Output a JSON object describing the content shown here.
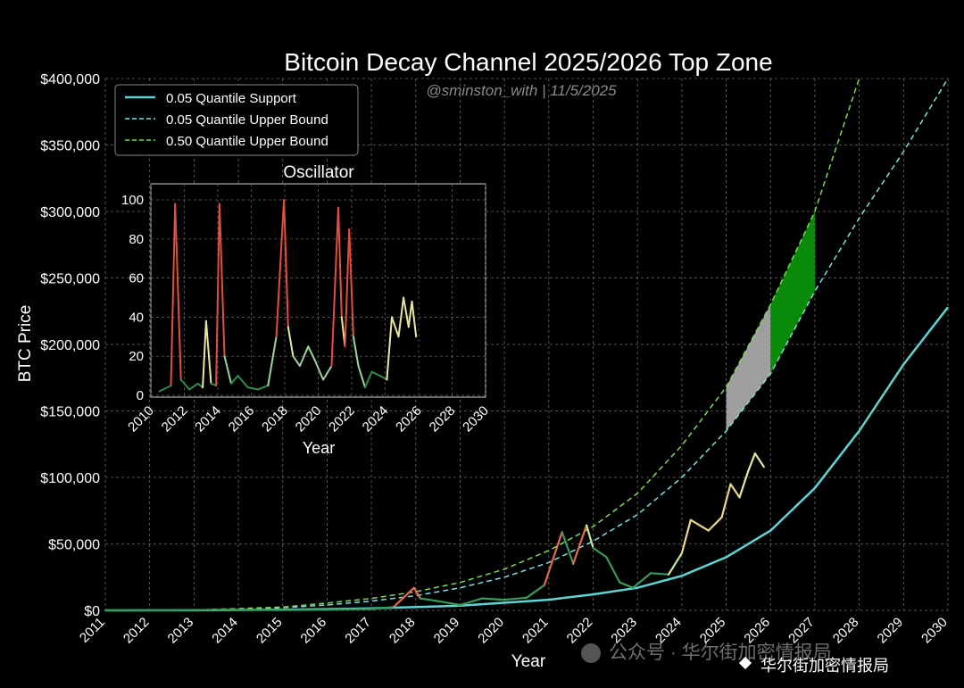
{
  "chart_data": {
    "main": {
      "type": "line",
      "title": "Bitcoin Decay Channel 2025/2026 Top Zone",
      "subtitle": "@sminston_with  |  11/5/2025",
      "xlabel": "Year",
      "ylabel": "BTC Price",
      "xlim": [
        2011,
        2030
      ],
      "ylim": [
        0,
        400000
      ],
      "x_ticks": [
        "2011",
        "2012",
        "2013",
        "2014",
        "2015",
        "2016",
        "2017",
        "2018",
        "2019",
        "2020",
        "2021",
        "2022",
        "2023",
        "2024",
        "2025",
        "2026",
        "2027",
        "2028",
        "2029",
        "2030"
      ],
      "y_ticks": [
        "$0",
        "$50,000",
        "$100,000",
        "$150,000",
        "$200,000",
        "$250,000",
        "$300,000",
        "$350,000",
        "$400,000"
      ],
      "grid": true,
      "legend_position": "top-left",
      "series": [
        {
          "name": "0.05 Quantile Support",
          "style": "solid",
          "color": "#5fd4d4",
          "x": [
            2011,
            2013,
            2015,
            2017,
            2019,
            2021,
            2022,
            2023,
            2024,
            2025,
            2026,
            2027,
            2028,
            2029,
            2030
          ],
          "y": [
            0,
            100,
            500,
            1500,
            3500,
            8000,
            12000,
            17000,
            26000,
            40000,
            60000,
            92000,
            135000,
            185000,
            228000
          ]
        },
        {
          "name": "0.05 Quantile Upper Bound",
          "style": "dashed",
          "color": "#7fe0e0",
          "x": [
            2013,
            2015,
            2016,
            2017,
            2018,
            2019,
            2020,
            2021,
            2022,
            2023,
            2024,
            2025,
            2026,
            2027,
            2028,
            2029,
            2030
          ],
          "y": [
            300,
            2000,
            4000,
            7000,
            11000,
            17000,
            25000,
            36000,
            52000,
            72000,
            100000,
            135000,
            178000,
            240000,
            295000,
            345000,
            400000
          ]
        },
        {
          "name": "0.50 Quantile Upper Bound",
          "style": "dashed",
          "color": "#7ed957",
          "x": [
            2013,
            2015,
            2016,
            2017,
            2018,
            2019,
            2020,
            2021,
            2022,
            2023,
            2024,
            2025,
            2026,
            2027,
            2028
          ],
          "y": [
            300,
            2500,
            5500,
            9000,
            14000,
            21000,
            31000,
            45000,
            63000,
            88000,
            124000,
            168000,
            230000,
            300000,
            400000
          ]
        },
        {
          "name": "BTC",
          "style": "price",
          "x": [
            2011,
            2012,
            2013,
            2014,
            2015,
            2016,
            2017,
            2017.5,
            2017.96,
            2018.1,
            2018.5,
            2019,
            2019.5,
            2020,
            2020.5,
            2020.9,
            2021.3,
            2021.55,
            2021.85,
            2022.0,
            2022.3,
            2022.6,
            2022.9,
            2023.3,
            2023.7,
            2024.0,
            2024.2,
            2024.6,
            2024.9,
            2025.1,
            2025.3,
            2025.5,
            2025.65,
            2025.85
          ],
          "y": [
            0,
            10,
            200,
            500,
            300,
            500,
            1000,
            2500,
            17000,
            9000,
            7000,
            4000,
            9000,
            8000,
            9500,
            19000,
            59000,
            35000,
            64000,
            47000,
            40000,
            21000,
            17000,
            28000,
            27000,
            43000,
            68000,
            60000,
            70000,
            95000,
            85000,
            105000,
            118000,
            108000
          ]
        }
      ],
      "zones": [
        {
          "name": "2025 zone",
          "color": "#b0b0b0",
          "x": [
            2025,
            2026
          ]
        },
        {
          "name": "2026 zone",
          "color": "#0a9a0a",
          "x": [
            2026,
            2027
          ]
        }
      ]
    },
    "inset": {
      "type": "line",
      "title": "Oscillator",
      "xlabel": "Year",
      "xlim": [
        2010,
        2030
      ],
      "ylim": [
        0,
        100
      ],
      "x_ticks": [
        "2010",
        "2012",
        "2014",
        "2016",
        "2018",
        "2020",
        "2022",
        "2024",
        "2026",
        "2028",
        "2030"
      ],
      "y_ticks": [
        "0",
        "20",
        "40",
        "60",
        "80",
        "100"
      ],
      "grid": true,
      "series": [
        {
          "name": "Oscillator",
          "x": [
            2010.5,
            2011.2,
            2011.45,
            2011.8,
            2012.3,
            2012.8,
            2013.1,
            2013.3,
            2013.6,
            2013.9,
            2014.1,
            2014.4,
            2014.8,
            2015.2,
            2015.8,
            2016.4,
            2017.0,
            2017.5,
            2017.95,
            2018.2,
            2018.5,
            2018.9,
            2019.4,
            2019.8,
            2020.3,
            2020.8,
            2021.2,
            2021.4,
            2021.6,
            2021.85,
            2022.1,
            2022.4,
            2022.8,
            2023.2,
            2023.7,
            2024.1,
            2024.4,
            2024.8,
            2025.1,
            2025.4,
            2025.6,
            2025.85
          ],
          "y": [
            2,
            5,
            98,
            8,
            3,
            6,
            4,
            38,
            6,
            5,
            98,
            20,
            6,
            10,
            4,
            3,
            5,
            30,
            100,
            35,
            20,
            15,
            25,
            18,
            8,
            15,
            96,
            40,
            25,
            85,
            30,
            15,
            4,
            12,
            10,
            8,
            40,
            30,
            50,
            35,
            48,
            30
          ]
        }
      ]
    }
  },
  "watermark": {
    "center": "公众号 · 华尔街加密情报局",
    "corner": "华尔街加密情报局"
  }
}
